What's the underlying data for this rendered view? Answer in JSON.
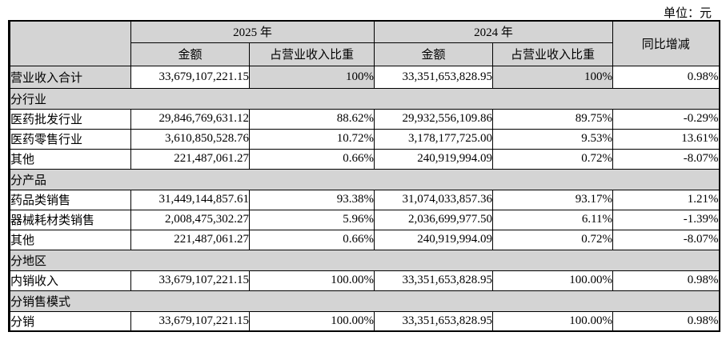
{
  "unit_label": "单位：元",
  "colors": {
    "header_fill": "#d4d4d4",
    "border": "#000000",
    "background": "#ffffff"
  },
  "table": {
    "col_headers": {
      "year_2025": "2025 年",
      "year_2024": "2024 年",
      "amount": "金额",
      "ratio": "占营业收入比重",
      "yoy": "同比增减"
    },
    "rows": [
      {
        "type": "data",
        "shaded": true,
        "label": "营业收入合计",
        "a2025": "33,679,107,221.15",
        "r2025": "100%",
        "a2024": "33,351,653,828.95",
        "r2024": "100%",
        "yoy": "0.98%"
      },
      {
        "type": "section",
        "label": "分行业"
      },
      {
        "type": "data",
        "label": "医药批发行业",
        "a2025": "29,846,769,631.12",
        "r2025": "88.62%",
        "a2024": "29,932,556,109.86",
        "r2024": "89.75%",
        "yoy": "-0.29%"
      },
      {
        "type": "data",
        "label": "医药零售行业",
        "a2025": "3,610,850,528.76",
        "r2025": "10.72%",
        "a2024": "3,178,177,725.00",
        "r2024": "9.53%",
        "yoy": "13.61%"
      },
      {
        "type": "data",
        "label": "其他",
        "a2025": "221,487,061.27",
        "r2025": "0.66%",
        "a2024": "240,919,994.09",
        "r2024": "0.72%",
        "yoy": "-8.07%"
      },
      {
        "type": "section",
        "label": "分产品"
      },
      {
        "type": "data",
        "label": "药品类销售",
        "a2025": "31,449,144,857.61",
        "r2025": "93.38%",
        "a2024": "31,074,033,857.36",
        "r2024": "93.17%",
        "yoy": "1.21%"
      },
      {
        "type": "data",
        "label": "器械耗材类销售",
        "a2025": "2,008,475,302.27",
        "r2025": "5.96%",
        "a2024": "2,036,699,977.50",
        "r2024": "6.11%",
        "yoy": "-1.39%"
      },
      {
        "type": "data",
        "label": "其他",
        "a2025": "221,487,061.27",
        "r2025": "0.66%",
        "a2024": "240,919,994.09",
        "r2024": "0.72%",
        "yoy": "-8.07%"
      },
      {
        "type": "section",
        "label": "分地区"
      },
      {
        "type": "data",
        "label": "内销收入",
        "a2025": "33,679,107,221.15",
        "r2025": "100.00%",
        "a2024": "33,351,653,828.95",
        "r2024": "100.00%",
        "yoy": "0.98%"
      },
      {
        "type": "section",
        "label": "分销售模式"
      },
      {
        "type": "data",
        "label": "分销",
        "a2025": "33,679,107,221.15",
        "r2025": "100.00%",
        "a2024": "33,351,653,828.95",
        "r2024": "100.00%",
        "yoy": "0.98%"
      }
    ]
  }
}
